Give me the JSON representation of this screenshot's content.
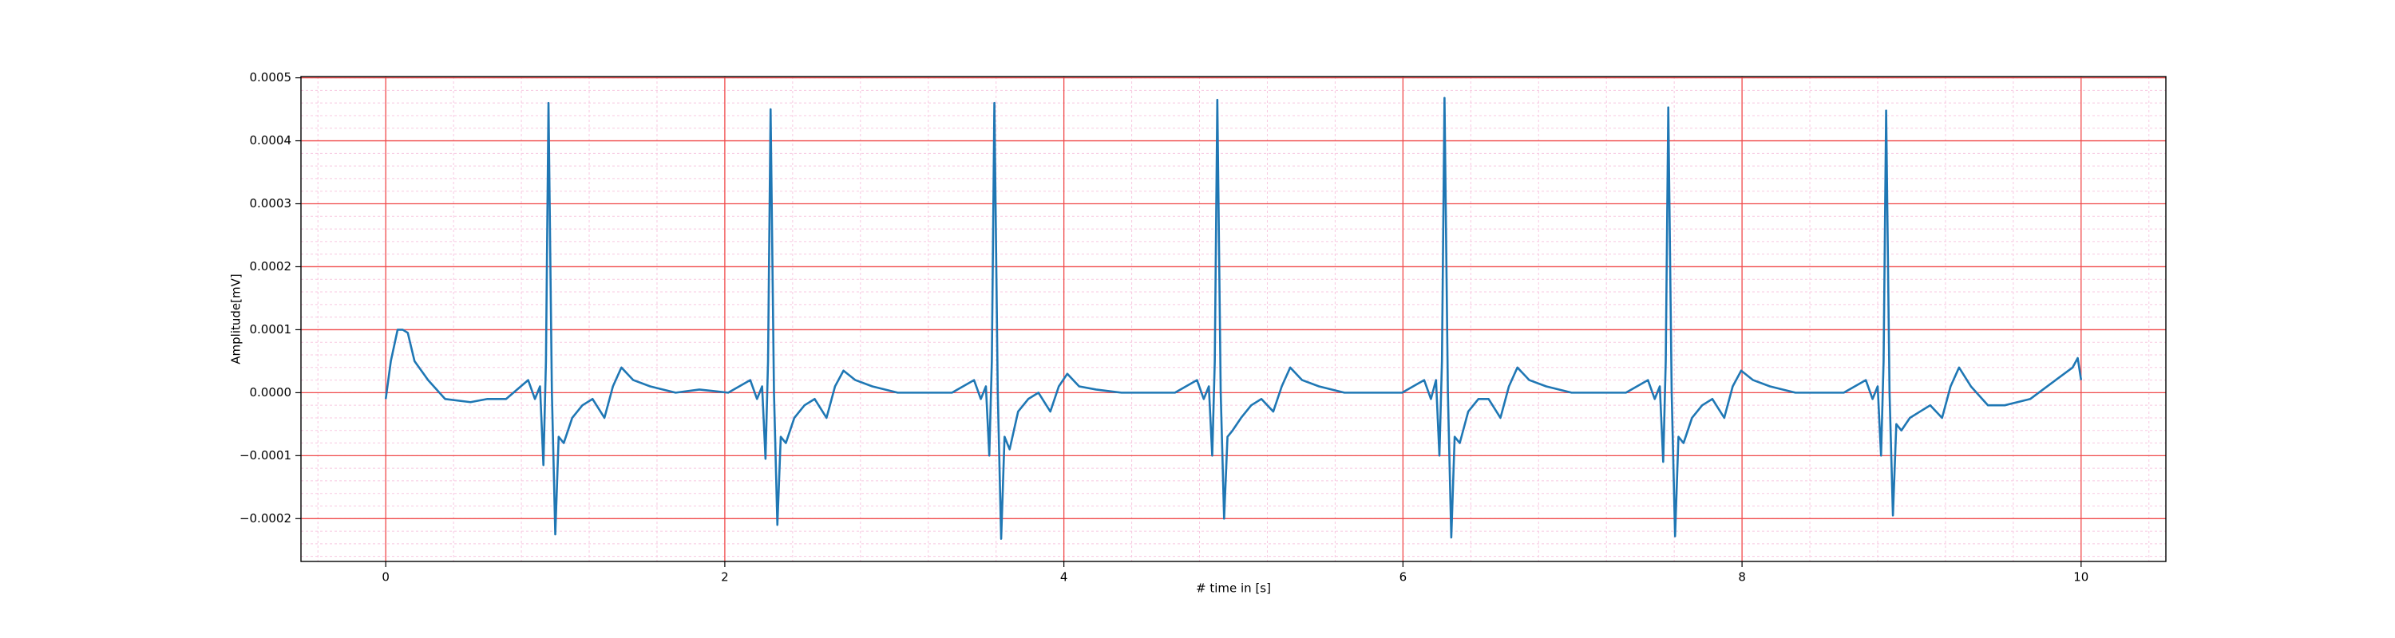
{
  "chart_data": {
    "type": "line",
    "xlabel": "# time in [s]",
    "ylabel": "Amplitude[mV]",
    "color": "#1f77b4",
    "grid": true,
    "minor_grid": true,
    "xlim": [
      -0.5,
      10.5
    ],
    "xticks": [
      0,
      2,
      4,
      6,
      8,
      10
    ],
    "ylim": [
      -0.000268,
      0.000502
    ],
    "yticks": [
      {
        "value": -0.0002,
        "label": "−0.0002"
      },
      {
        "value": -0.0001,
        "label": "−0.0001"
      },
      {
        "value": 0,
        "label": "0.0000"
      },
      {
        "value": 0.0001,
        "label": "0.0001"
      },
      {
        "value": 0.0002,
        "label": "0.0002"
      },
      {
        "value": 0.0003,
        "label": "0.0003"
      },
      {
        "value": 0.0004,
        "label": "0.0004"
      },
      {
        "value": 0.0005,
        "label": "0.0005"
      }
    ],
    "x": [
      0,
      0.03,
      0.07,
      0.1,
      0.13,
      0.17,
      0.25,
      0.35,
      0.5,
      0.6,
      0.71,
      0.84,
      0.88,
      0.91,
      0.93,
      0.945,
      0.96,
      0.98,
      1.0,
      1.02,
      1.05,
      1.1,
      1.16,
      1.22,
      1.29,
      1.34,
      1.39,
      1.46,
      1.56,
      1.71,
      1.85,
      2.02,
      2.15,
      2.19,
      2.22,
      2.24,
      2.255,
      2.27,
      2.29,
      2.31,
      2.33,
      2.36,
      2.41,
      2.47,
      2.53,
      2.6,
      2.65,
      2.7,
      2.77,
      2.87,
      3.02,
      3.2,
      3.34,
      3.47,
      3.51,
      3.54,
      3.56,
      3.575,
      3.59,
      3.61,
      3.63,
      3.65,
      3.68,
      3.73,
      3.79,
      3.85,
      3.92,
      3.97,
      4.02,
      4.09,
      4.19,
      4.34,
      4.5,
      4.655,
      4.785,
      4.825,
      4.855,
      4.875,
      4.89,
      4.905,
      4.925,
      4.945,
      4.965,
      4.995,
      5.045,
      5.105,
      5.165,
      5.235,
      5.285,
      5.335,
      5.405,
      5.505,
      5.655,
      5.85,
      5.995,
      6.125,
      6.165,
      6.195,
      6.215,
      6.23,
      6.245,
      6.265,
      6.285,
      6.305,
      6.335,
      6.385,
      6.445,
      6.505,
      6.575,
      6.625,
      6.675,
      6.745,
      6.845,
      6.995,
      7.2,
      7.315,
      7.445,
      7.485,
      7.515,
      7.535,
      7.55,
      7.565,
      7.585,
      7.605,
      7.625,
      7.655,
      7.705,
      7.765,
      7.825,
      7.895,
      7.945,
      7.995,
      8.065,
      8.165,
      8.315,
      8.5,
      8.6,
      8.73,
      8.77,
      8.8,
      8.82,
      8.835,
      8.85,
      8.87,
      8.89,
      8.91,
      8.94,
      8.99,
      9.05,
      9.11,
      9.18,
      9.23,
      9.28,
      9.35,
      9.45,
      9.55,
      9.7,
      9.85,
      9.95,
      9.98,
      10.0
    ],
    "values": [
      -1e-05,
      5e-05,
      0.0001,
      0.0001,
      9.5e-05,
      5e-05,
      2e-05,
      -1e-05,
      -1.5e-05,
      -1e-05,
      -1e-05,
      2e-05,
      -1e-05,
      1e-05,
      -0.000115,
      5e-05,
      0.00046,
      0.0,
      -0.000225,
      -7e-05,
      -8e-05,
      -4e-05,
      -2e-05,
      -1e-05,
      -4e-05,
      1e-05,
      4e-05,
      2e-05,
      1e-05,
      0.0,
      5e-06,
      0.0,
      2e-05,
      -1e-05,
      1e-05,
      -0.000105,
      5e-05,
      0.00045,
      0.0,
      -0.00021,
      -7e-05,
      -8e-05,
      -4e-05,
      -2e-05,
      -1e-05,
      -4e-05,
      1e-05,
      3.5e-05,
      2e-05,
      1e-05,
      0.0,
      0.0,
      0.0,
      2e-05,
      -1e-05,
      1e-05,
      -0.0001,
      5e-05,
      0.00046,
      0.0,
      -0.000232,
      -7e-05,
      -9e-05,
      -3e-05,
      -1e-05,
      0.0,
      -3e-05,
      1e-05,
      3e-05,
      1e-05,
      5e-06,
      0.0,
      0.0,
      0.0,
      2e-05,
      -1e-05,
      1e-05,
      -0.0001,
      5e-05,
      0.000465,
      0.0,
      -0.0002,
      -7e-05,
      -6e-05,
      -4e-05,
      -2e-05,
      -1e-05,
      -3e-05,
      1e-05,
      4e-05,
      2e-05,
      1e-05,
      0.0,
      0.0,
      0.0,
      2e-05,
      -1e-05,
      2e-05,
      -0.0001,
      5e-05,
      0.000468,
      0.0,
      -0.00023,
      -7e-05,
      -8e-05,
      -3e-05,
      -1e-05,
      -1e-05,
      -4e-05,
      1e-05,
      4e-05,
      2e-05,
      1e-05,
      0.0,
      0.0,
      0.0,
      2e-05,
      -1e-05,
      1e-05,
      -0.00011,
      5e-05,
      0.000453,
      0.0,
      -0.000228,
      -7e-05,
      -8e-05,
      -4e-05,
      -2e-05,
      -1e-05,
      -4e-05,
      1e-05,
      3.5e-05,
      2e-05,
      1e-05,
      0.0,
      0.0,
      0.0,
      2e-05,
      -1e-05,
      1e-05,
      -0.0001,
      5e-05,
      0.000448,
      0.0,
      -0.000195,
      -5e-05,
      -6e-05,
      -4e-05,
      -3e-05,
      -2e-05,
      -4e-05,
      1e-05,
      4e-05,
      1e-05,
      -2e-05,
      -2e-05,
      -1e-05,
      2e-05,
      4e-05,
      5.5e-05,
      2e-05
    ]
  }
}
